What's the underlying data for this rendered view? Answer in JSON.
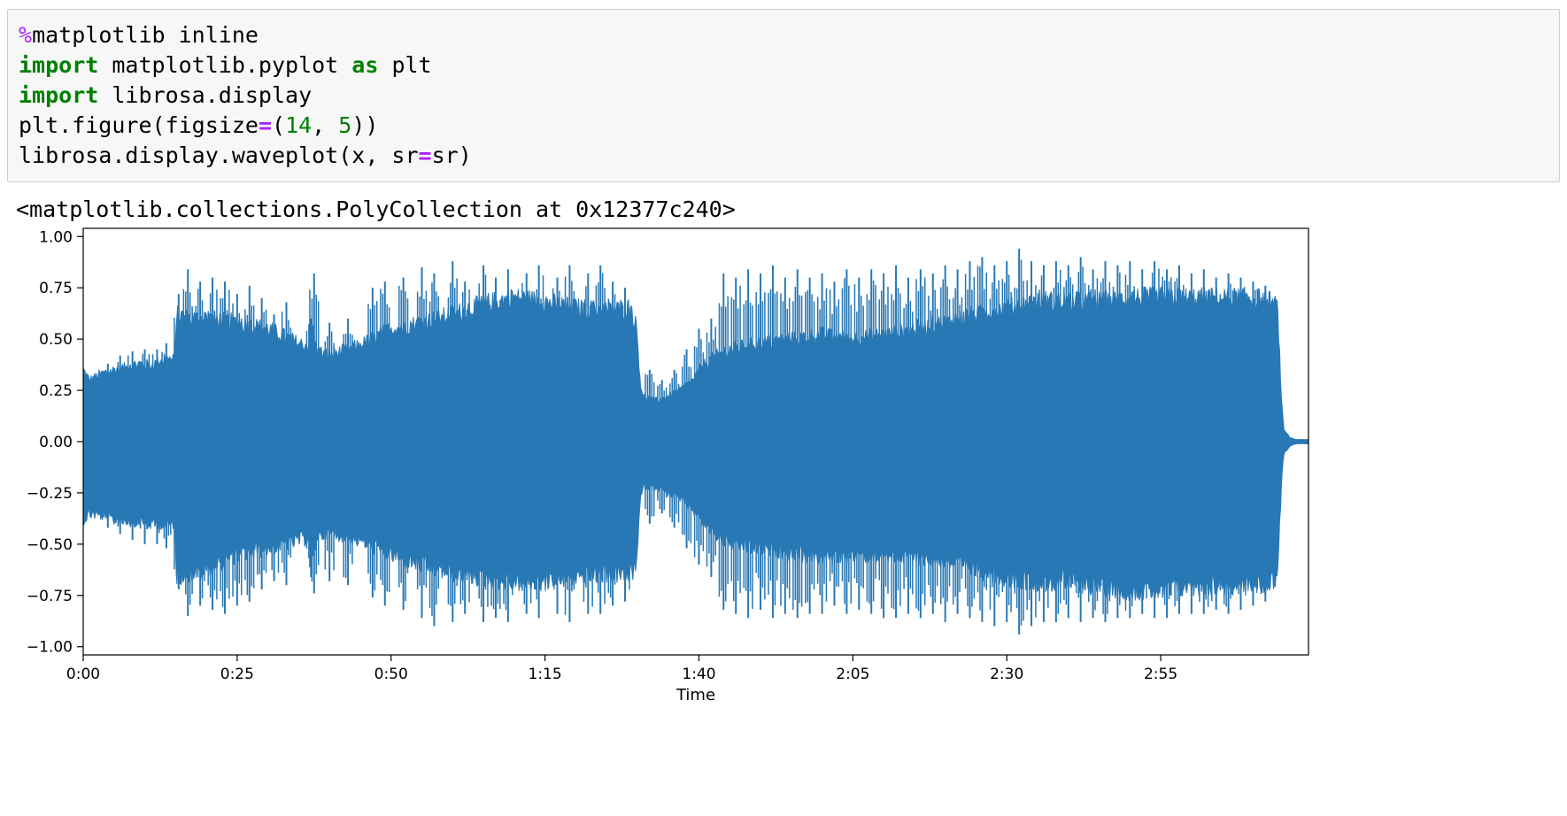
{
  "code_cell": {
    "lines": [
      [
        {
          "t": "%",
          "c": "magic"
        },
        {
          "t": "matplotlib inline",
          "c": ""
        }
      ],
      [
        {
          "t": "import",
          "c": "kw"
        },
        {
          "t": " matplotlib.pyplot ",
          "c": ""
        },
        {
          "t": "as",
          "c": "kw"
        },
        {
          "t": " plt",
          "c": ""
        }
      ],
      [
        {
          "t": "import",
          "c": "kw"
        },
        {
          "t": " librosa.display",
          "c": ""
        }
      ],
      [
        {
          "t": "plt.figure(figsize",
          "c": ""
        },
        {
          "t": "=",
          "c": "op"
        },
        {
          "t": "(",
          "c": ""
        },
        {
          "t": "14",
          "c": "num"
        },
        {
          "t": ", ",
          "c": ""
        },
        {
          "t": "5",
          "c": "num"
        },
        {
          "t": "))",
          "c": ""
        }
      ],
      [
        {
          "t": "librosa.display.waveplot(x, sr",
          "c": ""
        },
        {
          "t": "=",
          "c": "op"
        },
        {
          "t": "sr)",
          "c": ""
        }
      ]
    ]
  },
  "output": {
    "text": "<matplotlib.collections.PolyCollection at 0x12377c240>"
  },
  "chart_data": {
    "type": "area",
    "title": "",
    "xlabel": "Time",
    "ylabel": "",
    "xlim": [
      0,
      199
    ],
    "ylim": [
      -1.04,
      1.04
    ],
    "x_ticks": [
      0,
      25,
      50,
      75,
      100,
      125,
      150,
      175
    ],
    "x_tick_labels": [
      "0:00",
      "0:25",
      "0:50",
      "1:15",
      "1:40",
      "2:05",
      "2:30",
      "2:55"
    ],
    "y_ticks": [
      1.0,
      0.75,
      0.5,
      0.25,
      0.0,
      -0.25,
      -0.5,
      -0.75,
      -1.0
    ],
    "y_tick_labels": [
      "1.00",
      "0.75",
      "0.50",
      "0.25",
      "0.00",
      "−0.25",
      "−0.50",
      "−0.75",
      "−1.00"
    ],
    "grid": false,
    "series": [
      {
        "color": "#2878b5",
        "envelope_time": [
          0,
          1,
          3,
          5,
          7,
          9,
          11,
          13,
          14.9,
          15.1,
          17,
          20,
          25,
          30,
          35,
          40,
          45,
          50,
          55,
          60,
          65,
          70,
          75,
          80,
          85,
          89,
          89.9,
          90.5,
          91,
          93,
          95,
          97,
          99,
          101,
          103,
          105,
          110,
          115,
          120,
          125,
          130,
          135,
          140,
          145,
          150,
          155,
          160,
          165,
          170,
          175,
          180,
          185,
          190,
          193,
          194,
          194.6,
          195,
          196,
          197,
          199
        ],
        "envelope_max": [
          0.35,
          0.3,
          0.33,
          0.35,
          0.36,
          0.38,
          0.37,
          0.4,
          0.4,
          0.62,
          0.6,
          0.6,
          0.58,
          0.55,
          0.48,
          0.42,
          0.47,
          0.55,
          0.58,
          0.62,
          0.67,
          0.7,
          0.68,
          0.65,
          0.64,
          0.65,
          0.55,
          0.28,
          0.22,
          0.2,
          0.22,
          0.25,
          0.3,
          0.38,
          0.42,
          0.45,
          0.48,
          0.5,
          0.52,
          0.5,
          0.52,
          0.55,
          0.58,
          0.62,
          0.65,
          0.68,
          0.68,
          0.68,
          0.7,
          0.7,
          0.7,
          0.7,
          0.7,
          0.68,
          0.65,
          0.2,
          0.06,
          0.02,
          0.01,
          0.01
        ],
        "envelope_min": [
          -0.38,
          -0.35,
          -0.36,
          -0.38,
          -0.38,
          -0.39,
          -0.4,
          -0.4,
          -0.4,
          -0.65,
          -0.64,
          -0.62,
          -0.55,
          -0.52,
          -0.48,
          -0.44,
          -0.48,
          -0.55,
          -0.6,
          -0.64,
          -0.66,
          -0.68,
          -0.68,
          -0.66,
          -0.64,
          -0.65,
          -0.58,
          -0.28,
          -0.22,
          -0.22,
          -0.25,
          -0.28,
          -0.33,
          -0.4,
          -0.46,
          -0.5,
          -0.52,
          -0.54,
          -0.56,
          -0.55,
          -0.55,
          -0.56,
          -0.58,
          -0.62,
          -0.66,
          -0.68,
          -0.68,
          -0.7,
          -0.72,
          -0.72,
          -0.7,
          -0.7,
          -0.7,
          -0.68,
          -0.65,
          -0.2,
          -0.06,
          -0.02,
          -0.01,
          -0.01
        ],
        "peaks": [
          [
            2,
            0.3,
            -0.35
          ],
          [
            4,
            0.38,
            -0.42
          ],
          [
            6,
            0.42,
            -0.45
          ],
          [
            8,
            0.44,
            -0.48
          ],
          [
            10,
            0.45,
            -0.5
          ],
          [
            12,
            0.45,
            -0.5
          ],
          [
            13.5,
            0.48,
            -0.52
          ],
          [
            15.5,
            0.72,
            -0.72
          ],
          [
            17,
            0.84,
            -0.85
          ],
          [
            19,
            0.78,
            -0.8
          ],
          [
            21,
            0.8,
            -0.82
          ],
          [
            23,
            0.78,
            -0.84
          ],
          [
            25,
            0.72,
            -0.8
          ],
          [
            27,
            0.76,
            -0.78
          ],
          [
            29,
            0.7,
            -0.72
          ],
          [
            31,
            0.62,
            -0.68
          ],
          [
            33,
            0.68,
            -0.7
          ],
          [
            37,
            0.6,
            -0.66
          ],
          [
            37.5,
            0.82,
            -0.74
          ],
          [
            40,
            0.58,
            -0.68
          ],
          [
            43,
            0.6,
            -0.7
          ],
          [
            47,
            0.75,
            -0.76
          ],
          [
            49,
            0.78,
            -0.8
          ],
          [
            52,
            0.8,
            -0.82
          ],
          [
            55,
            0.85,
            -0.86
          ],
          [
            57,
            0.82,
            -0.9
          ],
          [
            60,
            0.88,
            -0.88
          ],
          [
            62,
            0.78,
            -0.84
          ],
          [
            65,
            0.86,
            -0.88
          ],
          [
            67,
            0.8,
            -0.86
          ],
          [
            69,
            0.84,
            -0.88
          ],
          [
            72,
            0.82,
            -0.84
          ],
          [
            74,
            0.86,
            -0.86
          ],
          [
            77,
            0.8,
            -0.84
          ],
          [
            79,
            0.86,
            -0.88
          ],
          [
            82,
            0.82,
            -0.84
          ],
          [
            84,
            0.86,
            -0.84
          ],
          [
            86,
            0.78,
            -0.8
          ],
          [
            88,
            0.75,
            -0.78
          ],
          [
            92,
            0.35,
            -0.4
          ],
          [
            94,
            0.3,
            -0.35
          ],
          [
            96,
            0.35,
            -0.42
          ],
          [
            98,
            0.45,
            -0.52
          ],
          [
            100,
            0.55,
            -0.6
          ],
          [
            102,
            0.6,
            -0.66
          ],
          [
            104,
            0.82,
            -0.82
          ],
          [
            106,
            0.8,
            -0.84
          ],
          [
            108,
            0.84,
            -0.86
          ],
          [
            110,
            0.82,
            -0.82
          ],
          [
            112,
            0.86,
            -0.86
          ],
          [
            114,
            0.8,
            -0.84
          ],
          [
            116,
            0.84,
            -0.86
          ],
          [
            118,
            0.8,
            -0.84
          ],
          [
            120,
            0.82,
            -0.84
          ],
          [
            122,
            0.78,
            -0.8
          ],
          [
            124,
            0.84,
            -0.84
          ],
          [
            126,
            0.8,
            -0.82
          ],
          [
            128,
            0.84,
            -0.84
          ],
          [
            130,
            0.82,
            -0.86
          ],
          [
            132,
            0.86,
            -0.86
          ],
          [
            134,
            0.8,
            -0.84
          ],
          [
            136,
            0.84,
            -0.86
          ],
          [
            138,
            0.82,
            -0.84
          ],
          [
            140,
            0.86,
            -0.88
          ],
          [
            142,
            0.84,
            -0.84
          ],
          [
            144,
            0.88,
            -0.86
          ],
          [
            146,
            0.9,
            -0.88
          ],
          [
            148,
            0.86,
            -0.9
          ],
          [
            150,
            0.88,
            -0.88
          ],
          [
            152,
            0.94,
            -0.94
          ],
          [
            154,
            0.88,
            -0.9
          ],
          [
            156,
            0.86,
            -0.88
          ],
          [
            158,
            0.88,
            -0.88
          ],
          [
            160,
            0.86,
            -0.86
          ],
          [
            162,
            0.9,
            -0.88
          ],
          [
            164,
            0.84,
            -0.86
          ],
          [
            166,
            0.88,
            -0.88
          ],
          [
            168,
            0.86,
            -0.86
          ],
          [
            170,
            0.88,
            -0.86
          ],
          [
            172,
            0.84,
            -0.84
          ],
          [
            174,
            0.88,
            -0.86
          ],
          [
            176,
            0.84,
            -0.86
          ],
          [
            178,
            0.86,
            -0.84
          ],
          [
            180,
            0.82,
            -0.84
          ],
          [
            182,
            0.84,
            -0.84
          ],
          [
            184,
            0.8,
            -0.82
          ],
          [
            186,
            0.82,
            -0.84
          ],
          [
            188,
            0.8,
            -0.82
          ],
          [
            190,
            0.78,
            -0.8
          ],
          [
            192,
            0.76,
            -0.78
          ]
        ]
      }
    ]
  }
}
